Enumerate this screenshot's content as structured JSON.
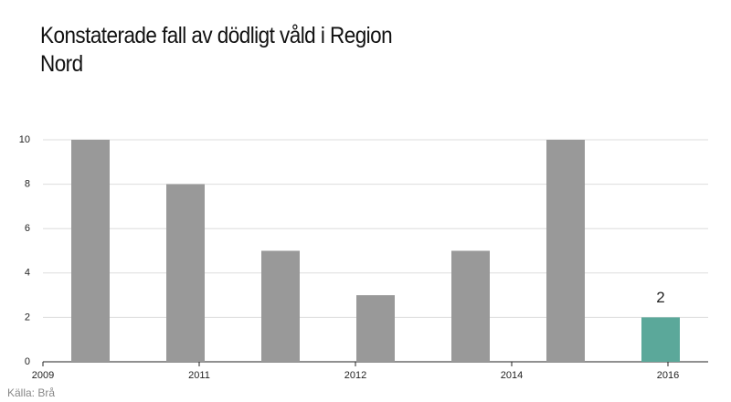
{
  "chart_data": {
    "type": "bar",
    "title": "Konstaterade fall av dödligt våld i Region Nord",
    "categories": [
      null,
      null,
      null,
      null,
      null,
      null,
      null
    ],
    "values": [
      10,
      8,
      5,
      3,
      5,
      10,
      2
    ],
    "value_labels": [
      null,
      null,
      null,
      null,
      null,
      null,
      "2"
    ],
    "colors": [
      "#999999",
      "#999999",
      "#999999",
      "#999999",
      "#999999",
      "#999999",
      "#5ba89a"
    ],
    "xtick_labels": [
      "2009",
      "2011",
      "2012",
      "2014",
      "2016"
    ],
    "ylim": [
      0,
      10
    ],
    "yticks": [
      0,
      2,
      4,
      6,
      8,
      10
    ],
    "grid": true,
    "source": "Källa: Brå"
  }
}
